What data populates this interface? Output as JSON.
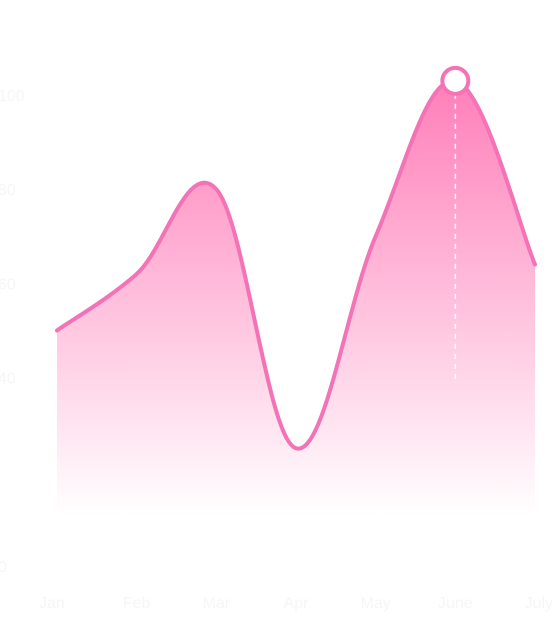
{
  "chart_data": {
    "type": "area",
    "title": "",
    "xlabel": "",
    "ylabel": "",
    "categories": [
      "Jan",
      "Feb",
      "Mar",
      "Apr",
      "May",
      "June",
      "July"
    ],
    "y_ticks": [
      "0",
      "40",
      "60",
      "80",
      "100"
    ],
    "ylim": [
      0,
      100
    ],
    "grid": false,
    "legend": "none",
    "series": [
      {
        "points": [
          {
            "x": "Jan",
            "y": 50
          },
          {
            "x": "Feb",
            "y": 62
          },
          {
            "x": "Mar",
            "y": 80
          },
          {
            "x": "Apr",
            "y": 25
          },
          {
            "x": "May",
            "y": 70
          },
          {
            "x": "June",
            "y": 103
          },
          {
            "x": "July",
            "y": 64
          }
        ]
      }
    ],
    "highlight": {
      "x": "June",
      "y": 103
    },
    "colors": {
      "line": "#f472b6",
      "fill_top": "#ff7eb9",
      "fill_bottom": "#ffffff",
      "marker_fill": "#ffffff",
      "tick_text": "#f6f6f6",
      "guide": "#ffffff"
    }
  }
}
